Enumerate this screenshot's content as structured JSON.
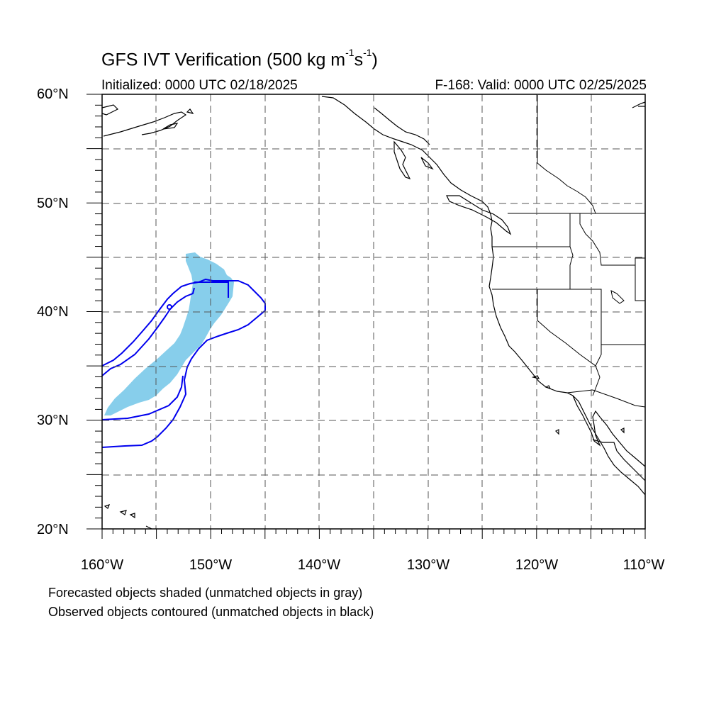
{
  "title": {
    "main": "GFS IVT Verification (500 kg m",
    "sup1": "-1",
    "mid": "s",
    "sup2": "-1",
    "end": ")"
  },
  "subtitle_left": "Initialized: 0000 UTC 02/18/2025",
  "subtitle_right": "F-168: Valid: 0000 UTC 02/25/2025",
  "lat_labels": [
    "60°N",
    "50°N",
    "40°N",
    "30°N",
    "20°N"
  ],
  "lon_labels": [
    "160°W",
    "150°W",
    "140°W",
    "130°W",
    "120°W",
    "110°W"
  ],
  "notes": [
    "Forecasted objects shaded (unmatched objects in gray)",
    "Observed objects contoured (unmatched objects in black)"
  ],
  "map_extent": {
    "lon": [
      -160,
      -110
    ],
    "lat": [
      20,
      60
    ]
  },
  "colors": {
    "forecast_fill": "#87ceeb",
    "observed_contour": "#0000ee",
    "coastline": "#000000",
    "grid": "#444444"
  }
}
